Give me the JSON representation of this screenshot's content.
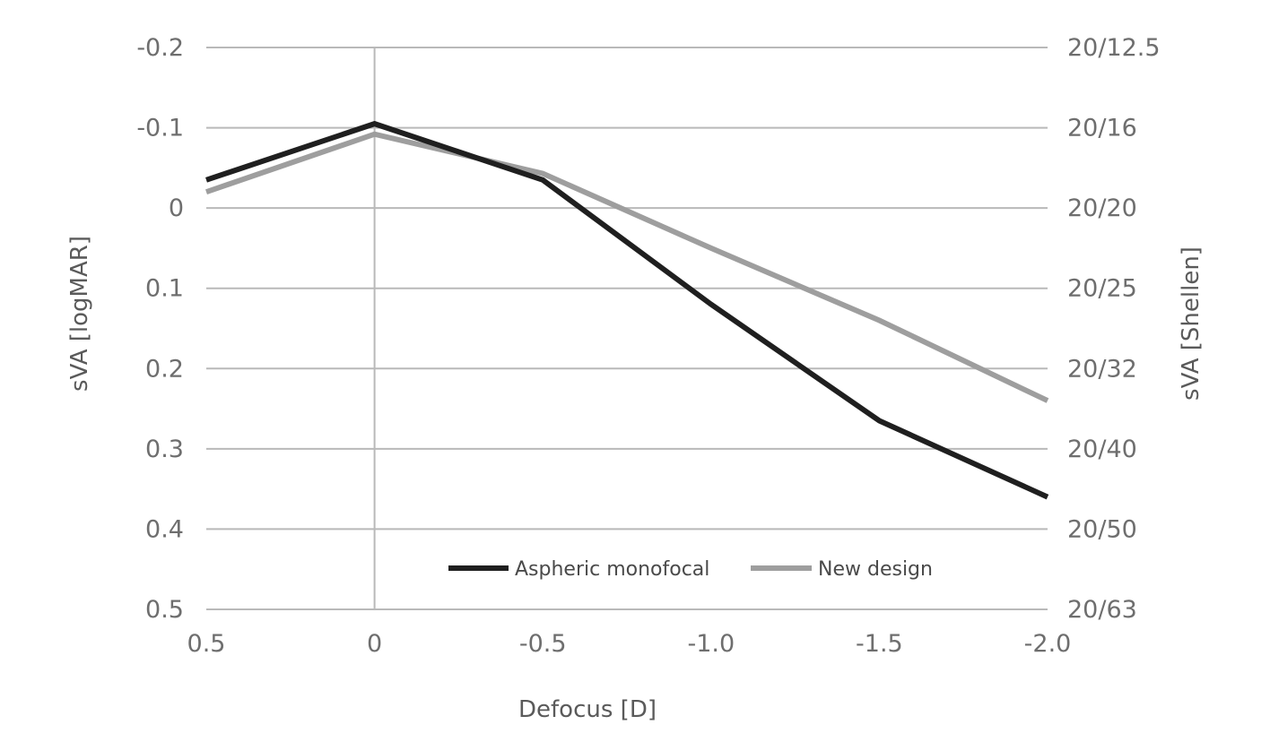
{
  "chart_data": {
    "type": "line",
    "xlabel": "Defocus [D]",
    "ylabel_left": "sVA [logMAR]",
    "ylabel_right": "sVA [Shellen]",
    "x": [
      0.5,
      0,
      -0.5,
      -1.0,
      -1.5,
      -2.0
    ],
    "x_tick_labels": [
      "0.5",
      "0",
      "-0.5",
      "-1.0",
      "-1.5",
      "-2.0"
    ],
    "xlim": [
      0.5,
      -2.0
    ],
    "ylim": [
      -0.2,
      0.5
    ],
    "y_inverted": true,
    "y_ticks": [
      -0.2,
      -0.1,
      0,
      0.1,
      0.2,
      0.3,
      0.4,
      0.5
    ],
    "y_tick_labels_left": [
      "-0.2",
      "-0.1",
      "0",
      "0.1",
      "0.2",
      "0.3",
      "0.4",
      "0.5"
    ],
    "y_tick_labels_right": [
      "20/12.5",
      "20/16",
      "20/20",
      "20/25",
      "20/32",
      "20/40",
      "20/50",
      "20/63"
    ],
    "grid": true,
    "legend_position": "bottom-center",
    "series": [
      {
        "name": "Aspheric monofocal",
        "color": "#1f1f1f",
        "values": [
          -0.035,
          -0.105,
          -0.035,
          0.12,
          0.265,
          0.36
        ]
      },
      {
        "name": "New design",
        "color": "#9e9e9e",
        "values": [
          -0.02,
          -0.092,
          -0.043,
          0.05,
          0.14,
          0.24
        ]
      }
    ]
  }
}
